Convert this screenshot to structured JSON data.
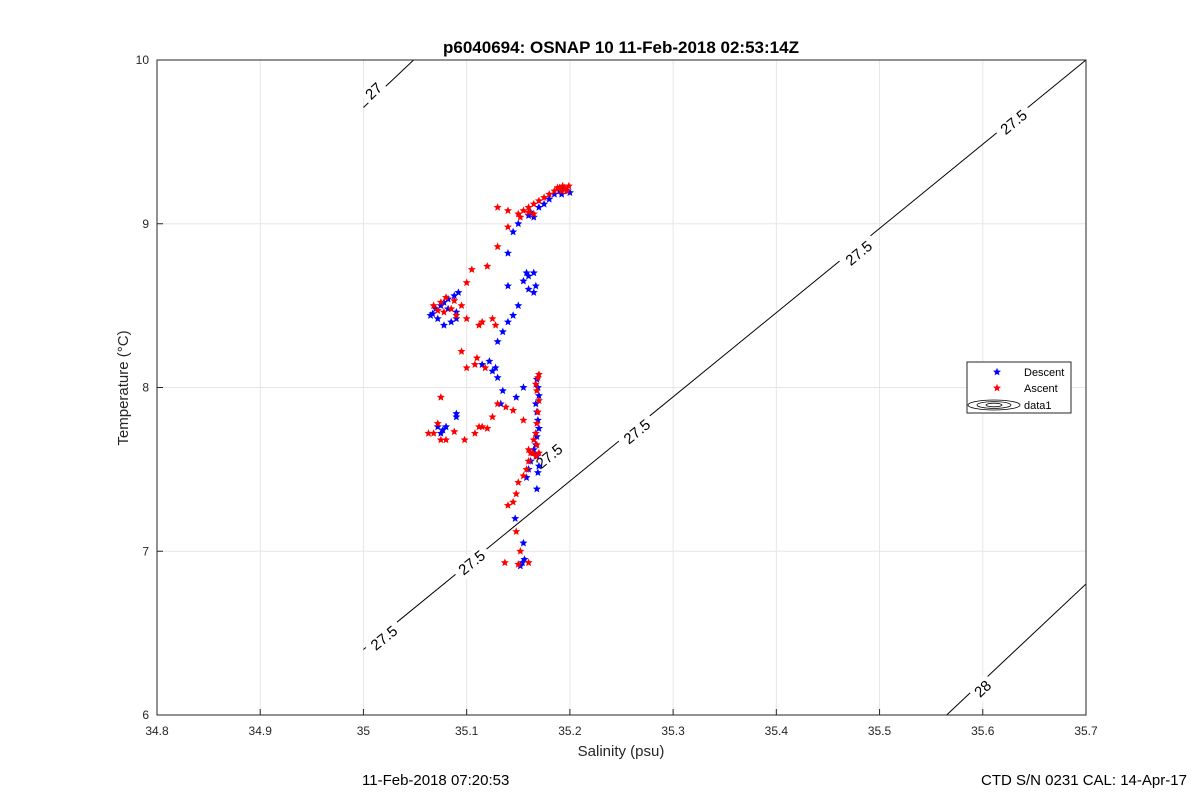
{
  "chart_data": {
    "type": "scatter",
    "title": "p6040694: OSNAP 10 11-Feb-2018 02:53:14Z",
    "xlabel": "Salinity (psu)",
    "ylabel": "Temperature (°C)",
    "xlim": [
      34.8,
      35.7
    ],
    "ylim": [
      6,
      10
    ],
    "xticks": [
      34.8,
      34.9,
      35.0,
      35.1,
      35.2,
      35.3,
      35.4,
      35.5,
      35.6,
      35.7
    ],
    "xtick_labels": [
      "34.8",
      "34.9",
      "35",
      "35.1",
      "35.2",
      "35.3",
      "35.4",
      "35.5",
      "35.6",
      "35.7"
    ],
    "yticks": [
      6,
      7,
      8,
      9,
      10
    ],
    "ytick_labels": [
      "6",
      "7",
      "8",
      "9",
      "10"
    ],
    "grid": true,
    "legend": {
      "placement": "right",
      "entries": [
        "Descent",
        "Ascent",
        "data1"
      ]
    },
    "series": [
      {
        "name": "Descent",
        "color": "#0000ff",
        "marker": "pentagram",
        "x": [
          35.152,
          35.154,
          35.156,
          35.155,
          35.147,
          35.158,
          35.16,
          35.162,
          35.165,
          35.167,
          35.168,
          35.17,
          35.169,
          35.168,
          35.167,
          35.17,
          35.169,
          35.168,
          35.167,
          35.165,
          35.168,
          35.17,
          35.169,
          35.168,
          35.155,
          35.148,
          35.135,
          35.133,
          35.128,
          35.13,
          35.122,
          35.115,
          35.125,
          35.09,
          35.09,
          35.08,
          35.077,
          35.072,
          35.075,
          35.067,
          35.072,
          35.078,
          35.085,
          35.09,
          35.09,
          35.082,
          35.075,
          35.078,
          35.07,
          35.065,
          35.082,
          35.088,
          35.092,
          35.13,
          35.135,
          35.14,
          35.145,
          35.15,
          35.14,
          35.155,
          35.158,
          35.16,
          35.165,
          35.167,
          35.165,
          35.16,
          35.14,
          35.145,
          35.15,
          35.16,
          35.162,
          35.165,
          35.17,
          35.175,
          35.18,
          35.185,
          35.19,
          35.195,
          35.192,
          35.198,
          35.2
        ],
        "y": [
          6.91,
          6.93,
          6.95,
          7.05,
          7.2,
          7.45,
          7.5,
          7.55,
          7.6,
          7.65,
          7.7,
          7.75,
          7.8,
          7.85,
          7.9,
          7.95,
          8.0,
          8.05,
          7.72,
          7.62,
          7.58,
          7.52,
          7.48,
          7.38,
          8.0,
          7.94,
          7.98,
          7.9,
          8.12,
          8.06,
          8.16,
          8.14,
          8.1,
          7.84,
          7.82,
          7.76,
          7.74,
          7.76,
          7.72,
          8.45,
          8.42,
          8.38,
          8.4,
          8.42,
          8.46,
          8.48,
          8.5,
          8.52,
          8.48,
          8.44,
          8.54,
          8.56,
          8.58,
          8.28,
          8.34,
          8.4,
          8.44,
          8.5,
          8.62,
          8.65,
          8.7,
          8.68,
          8.7,
          8.62,
          8.58,
          8.6,
          8.82,
          8.95,
          9.0,
          9.05,
          9.07,
          9.04,
          9.1,
          9.12,
          9.15,
          9.18,
          9.2,
          9.21,
          9.18,
          9.2,
          9.19
        ]
      },
      {
        "name": "Ascent",
        "color": "#ff0000",
        "marker": "pentagram",
        "x": [
          35.137,
          35.15,
          35.16,
          35.152,
          35.148,
          35.145,
          35.14,
          35.148,
          35.15,
          35.155,
          35.158,
          35.16,
          35.162,
          35.165,
          35.167,
          35.168,
          35.169,
          35.17,
          35.168,
          35.167,
          35.169,
          35.17,
          35.168,
          35.16,
          35.164,
          35.167,
          35.17,
          35.155,
          35.145,
          35.138,
          35.13,
          35.125,
          35.115,
          35.12,
          35.112,
          35.108,
          35.098,
          35.088,
          35.08,
          35.075,
          35.072,
          35.068,
          35.063,
          35.075,
          35.095,
          35.1,
          35.108,
          35.11,
          35.118,
          35.128,
          35.125,
          35.115,
          35.112,
          35.1,
          35.09,
          35.085,
          35.078,
          35.072,
          35.068,
          35.075,
          35.08,
          35.088,
          35.095,
          35.1,
          35.105,
          35.12,
          35.13,
          35.14,
          35.152,
          35.16,
          35.165,
          35.13,
          35.14,
          35.15,
          35.155,
          35.16,
          35.165,
          35.17,
          35.175,
          35.18,
          35.185,
          35.19,
          35.193,
          35.195,
          35.197,
          35.199,
          35.188,
          35.192
        ],
        "y": [
          6.93,
          6.92,
          6.93,
          7.0,
          7.12,
          7.3,
          7.28,
          7.35,
          7.42,
          7.46,
          7.5,
          7.55,
          7.6,
          7.68,
          7.72,
          7.78,
          7.85,
          7.92,
          7.98,
          8.02,
          8.06,
          8.08,
          7.65,
          7.62,
          7.6,
          7.58,
          7.6,
          7.8,
          7.86,
          7.88,
          7.9,
          7.82,
          7.76,
          7.75,
          7.76,
          7.72,
          7.68,
          7.73,
          7.68,
          7.68,
          7.78,
          7.72,
          7.72,
          7.94,
          8.22,
          8.12,
          8.14,
          8.18,
          8.12,
          8.38,
          8.42,
          8.4,
          8.38,
          8.42,
          8.44,
          8.48,
          8.46,
          8.47,
          8.5,
          8.52,
          8.55,
          8.53,
          8.5,
          8.64,
          8.72,
          8.74,
          8.86,
          8.98,
          9.04,
          9.07,
          9.06,
          9.1,
          9.08,
          9.06,
          9.08,
          9.1,
          9.12,
          9.14,
          9.16,
          9.18,
          9.2,
          9.22,
          9.23,
          9.22,
          9.2,
          9.23,
          9.22,
          9.2
        ]
      }
    ],
    "contours": [
      {
        "label": "27",
        "points": [
          [
            35.0,
            9.71
          ],
          [
            35.3,
            11.5
          ]
        ],
        "label_positions": [
          [
            35.01,
            9.81
          ]
        ]
      },
      {
        "label": "27.5",
        "points": [
          [
            35.0,
            6.4
          ],
          [
            35.7,
            10.0
          ]
        ],
        "label_positions": [
          [
            35.02,
            6.47
          ],
          [
            35.105,
            6.93
          ],
          [
            35.265,
            7.73
          ],
          [
            35.18,
            7.58
          ],
          [
            35.48,
            8.82
          ],
          [
            35.63,
            9.62
          ]
        ]
      },
      {
        "label": "28",
        "points": [
          [
            35.565,
            6.0
          ],
          [
            35.7,
            6.8
          ]
        ],
        "label_positions": [
          [
            35.6,
            6.16
          ]
        ]
      }
    ]
  },
  "footer": {
    "left": "11-Feb-2018 07:20:53",
    "right": "CTD S/N 0231  CAL: 14-Apr-17"
  }
}
